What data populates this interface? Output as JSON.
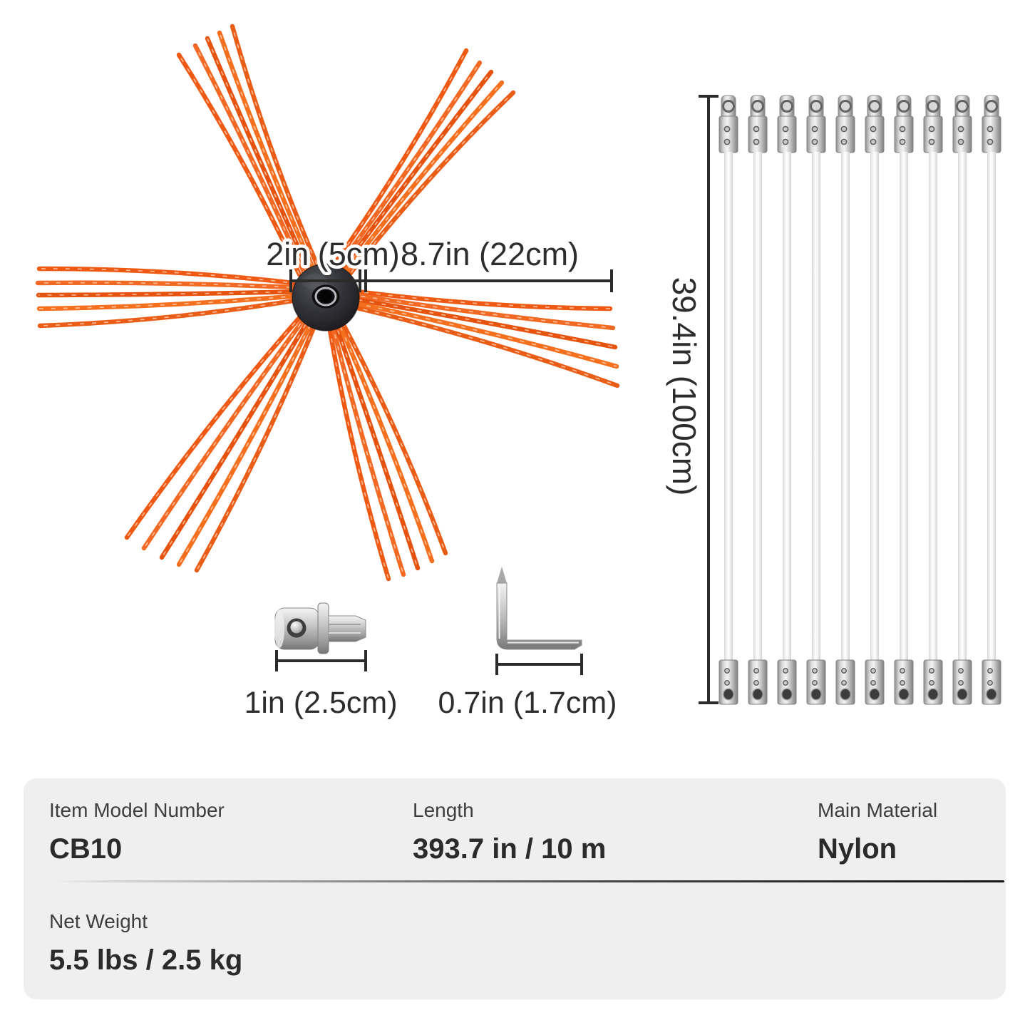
{
  "product": {
    "brush": {
      "hub_dim": "2in (5cm)",
      "bristle_dim": "8.7in (22cm)"
    },
    "rods": {
      "count": 10,
      "length_dim": "39.4in (100cm)"
    },
    "adapter": {
      "length_dim": "1in (2.5cm)"
    },
    "hex_key": {
      "length_dim": "0.7in (1.7cm)"
    }
  },
  "spec_table": {
    "row1": [
      {
        "label": "Item Model Number",
        "value": "CB10"
      },
      {
        "label": "Length",
        "value": "393.7 in / 10 m"
      },
      {
        "label": "Main Material",
        "value": "Nylon"
      }
    ],
    "row2": [
      {
        "label": "Net Weight",
        "value": "5.5 lbs / 2.5 kg"
      }
    ]
  },
  "colors": {
    "bristle_orange": "#ee5a14",
    "dimension_line": "#2b2b2b",
    "card_bg": "#efeff0",
    "text_dark": "#2b2b2b"
  }
}
